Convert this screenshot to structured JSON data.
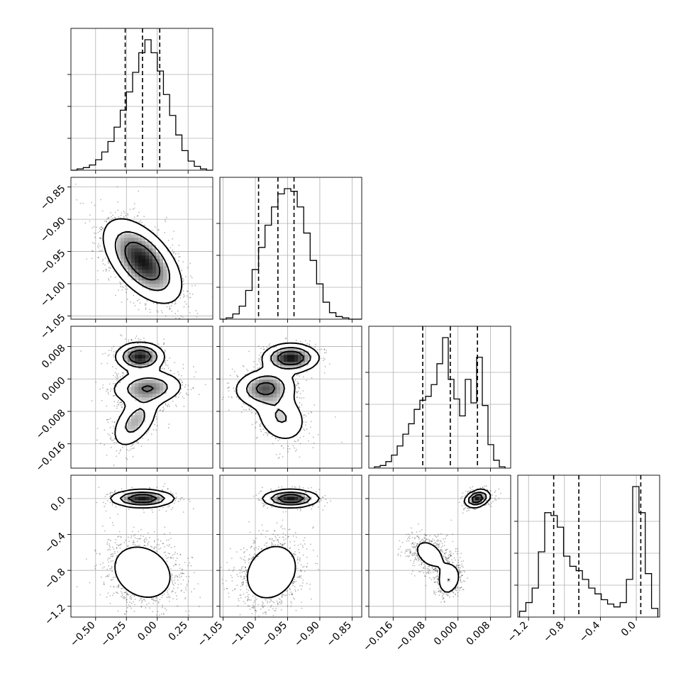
{
  "chart_data": {
    "type": "corner",
    "title": "",
    "grid": true,
    "parameters": [
      {
        "index": 0,
        "range": [
          -0.7,
          0.45
        ],
        "ticks": [
          -0.5,
          -0.25,
          0.0,
          0.25
        ],
        "tick_labels": [
          "−0.50",
          "−0.25",
          "0.00",
          "0.25"
        ],
        "quantiles": [
          -0.26,
          -0.12,
          0.02
        ],
        "hist_edges": [
          -0.7,
          -0.65,
          -0.6,
          -0.55,
          -0.5,
          -0.45,
          -0.4,
          -0.35,
          -0.3,
          -0.25,
          -0.2,
          -0.15,
          -0.1,
          -0.05,
          0.0,
          0.05,
          0.1,
          0.15,
          0.2,
          0.25,
          0.3,
          0.35,
          0.4,
          0.45
        ],
        "hist_counts": [
          0,
          0.01,
          0.02,
          0.04,
          0.08,
          0.14,
          0.22,
          0.33,
          0.46,
          0.6,
          0.75,
          0.9,
          1.0,
          0.9,
          0.76,
          0.58,
          0.42,
          0.27,
          0.15,
          0.07,
          0.03,
          0.01,
          0
        ]
      },
      {
        "index": 1,
        "range": [
          -1.055,
          -0.835
        ],
        "ticks": [
          -1.05,
          -1.0,
          -0.95,
          -0.9,
          -0.85
        ],
        "tick_labels": [
          "−1.05",
          "−1.00",
          "−0.95",
          "−0.90",
          "−0.85"
        ],
        "quantiles": [
          -0.995,
          -0.965,
          -0.94
        ],
        "hist_edges": [
          -1.055,
          -1.045,
          -1.035,
          -1.025,
          -1.015,
          -1.005,
          -0.995,
          -0.985,
          -0.975,
          -0.965,
          -0.955,
          -0.945,
          -0.935,
          -0.925,
          -0.915,
          -0.905,
          -0.895,
          -0.885,
          -0.875,
          -0.865,
          -0.855,
          -0.845,
          -0.835
        ],
        "hist_counts": [
          0,
          0.01,
          0.04,
          0.1,
          0.22,
          0.38,
          0.55,
          0.72,
          0.86,
          0.96,
          1.0,
          0.98,
          0.86,
          0.66,
          0.45,
          0.27,
          0.13,
          0.05,
          0.02,
          0.01,
          0,
          0
        ]
      },
      {
        "index": 2,
        "range": [
          -0.022,
          0.013
        ],
        "ticks": [
          -0.016,
          -0.008,
          0.0,
          0.008
        ],
        "tick_labels": [
          "−0.016",
          "−0.008",
          "0.000",
          "0.008"
        ],
        "quantiles": [
          -0.0087,
          -0.0019,
          0.0048
        ],
        "hist_edges": [
          -0.0206,
          -0.0192,
          -0.0178,
          -0.0164,
          -0.015,
          -0.0136,
          -0.0122,
          -0.0108,
          -0.0094,
          -0.008,
          -0.0066,
          -0.0052,
          -0.0038,
          -0.0024,
          -0.001,
          0.0004,
          0.0018,
          0.0032,
          0.0046,
          0.006,
          0.0074,
          0.0088,
          0.0102,
          0.0116
        ],
        "hist_counts": [
          0.01,
          0.02,
          0.05,
          0.1,
          0.17,
          0.26,
          0.34,
          0.45,
          0.52,
          0.55,
          0.64,
          0.8,
          1.0,
          0.68,
          0.53,
          0.4,
          0.68,
          0.5,
          0.85,
          0.48,
          0.18,
          0.06,
          0.01
        ]
      },
      {
        "index": 3,
        "range": [
          -1.32,
          0.26
        ],
        "ticks": [
          -1.2,
          -0.8,
          -0.4,
          0.0
        ],
        "tick_labels": [
          "−1.2",
          "−0.8",
          "−0.4",
          "0.0"
        ],
        "quantiles": [
          -0.92,
          -0.64,
          0.05
        ],
        "hist_edges": [
          -1.3,
          -1.23,
          -1.16,
          -1.09,
          -1.02,
          -0.95,
          -0.88,
          -0.81,
          -0.74,
          -0.67,
          -0.6,
          -0.53,
          -0.46,
          -0.39,
          -0.32,
          -0.25,
          -0.18,
          -0.11,
          -0.04,
          0.03,
          0.1,
          0.17,
          0.24
        ],
        "hist_counts": [
          0.04,
          0.1,
          0.2,
          0.45,
          0.72,
          0.7,
          0.62,
          0.42,
          0.35,
          0.32,
          0.26,
          0.2,
          0.16,
          0.12,
          0.09,
          0.07,
          0.1,
          0.26,
          0.9,
          0.72,
          0.3,
          0.06
        ]
      }
    ],
    "pairs": [
      {
        "x": 0,
        "y": 1,
        "components": [
          {
            "mx": -0.12,
            "my": -0.965,
            "sx": 0.16,
            "sy": 0.033,
            "rho": -0.55,
            "w": 1.0
          }
        ]
      },
      {
        "x": 0,
        "y": 2,
        "components": [
          {
            "mx": -0.14,
            "my": 0.0055,
            "sx": 0.1,
            "sy": 0.0018,
            "rho": 0.0,
            "w": 0.32
          },
          {
            "mx": -0.08,
            "my": -0.0022,
            "sx": 0.15,
            "sy": 0.0022,
            "rho": 0.1,
            "w": 0.4
          },
          {
            "mx": -0.18,
            "my": -0.0105,
            "sx": 0.1,
            "sy": 0.0035,
            "rho": 0.5,
            "w": 0.28
          }
        ]
      },
      {
        "x": 1,
        "y": 2,
        "components": [
          {
            "mx": -0.945,
            "my": 0.0052,
            "sx": 0.022,
            "sy": 0.0018,
            "rho": 0.0,
            "w": 0.35
          },
          {
            "mx": -0.985,
            "my": -0.0022,
            "sx": 0.024,
            "sy": 0.0024,
            "rho": 0.1,
            "w": 0.38
          },
          {
            "mx": -0.96,
            "my": -0.0095,
            "sx": 0.022,
            "sy": 0.0035,
            "rho": -0.2,
            "w": 0.27
          }
        ]
      },
      {
        "x": 0,
        "y": 3,
        "components": [
          {
            "mx": -0.12,
            "my": 0.0,
            "sx": 0.13,
            "sy": 0.05,
            "rho": 0.0,
            "w": 0.36
          },
          {
            "mx": -0.12,
            "my": -0.82,
            "sx": 0.16,
            "sy": 0.2,
            "rho": -0.2,
            "w": 0.64
          }
        ]
      },
      {
        "x": 1,
        "y": 3,
        "components": [
          {
            "mx": -0.945,
            "my": 0.0,
            "sx": 0.022,
            "sy": 0.05,
            "rho": 0.0,
            "w": 0.36
          },
          {
            "mx": -0.975,
            "my": -0.82,
            "sx": 0.026,
            "sy": 0.2,
            "rho": 0.2,
            "w": 0.64
          }
        ]
      },
      {
        "x": 2,
        "y": 3,
        "components": [
          {
            "mx": 0.0048,
            "my": 0.0,
            "sx": 0.0016,
            "sy": 0.05,
            "rho": 0.3,
            "w": 0.36
          },
          {
            "mx": -0.007,
            "my": -0.62,
            "sx": 0.0028,
            "sy": 0.12,
            "rho": -0.4,
            "w": 0.36
          },
          {
            "mx": -0.0022,
            "my": -0.9,
            "sx": 0.0016,
            "sy": 0.1,
            "rho": 0.2,
            "w": 0.28
          }
        ]
      }
    ]
  }
}
